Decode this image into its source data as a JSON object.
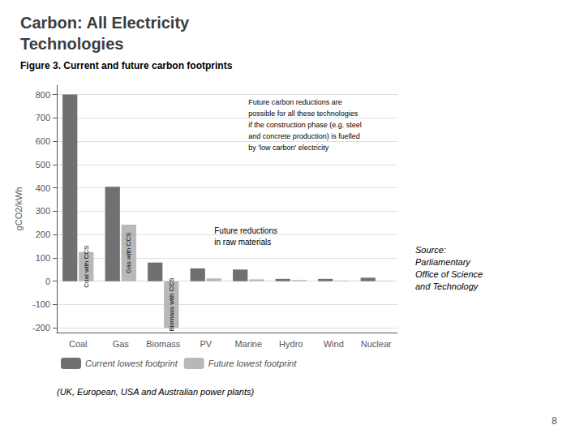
{
  "chart_data": {
    "type": "bar",
    "title": "Carbon: All Electricity\nTechnologies",
    "subtitle": "Figure 3. Current and future carbon footprints",
    "categories": [
      "Coal",
      "Gas",
      "Biomass",
      "PV",
      "Marine",
      "Hydro",
      "Wind",
      "Nuclear"
    ],
    "series": [
      {
        "name": "Current lowest footprint",
        "color": "#707070",
        "values": [
          800,
          405,
          80,
          55,
          50,
          10,
          10,
          15
        ]
      },
      {
        "name": "Future lowest footprint",
        "color": "#b8b8b8",
        "values": [
          125,
          242,
          -200,
          12,
          8,
          5,
          3,
          2
        ],
        "labels": [
          "Coal with CCS",
          "Gas with CCS",
          "Biomass with CCS"
        ]
      }
    ],
    "ylabel": "gCO2/kWh",
    "ylim": [
      -220,
      840
    ],
    "yticks": [
      -200,
      -100,
      0,
      100,
      200,
      300,
      400,
      500,
      600,
      700,
      800
    ],
    "grid": true,
    "legend": "bottom",
    "annotations": [
      "Future reductions\nin raw materials",
      "Future carbon reductions are\npossible for all these technologies\nif the construction phase (e.g. steel\nand concrete production) is fuelled\nby 'low carbon' electricity",
      "(UK, European, USA and Australian power plants)",
      "Source:\nParliamentary\nOffice of Science\nand Technology",
      "8"
    ]
  }
}
